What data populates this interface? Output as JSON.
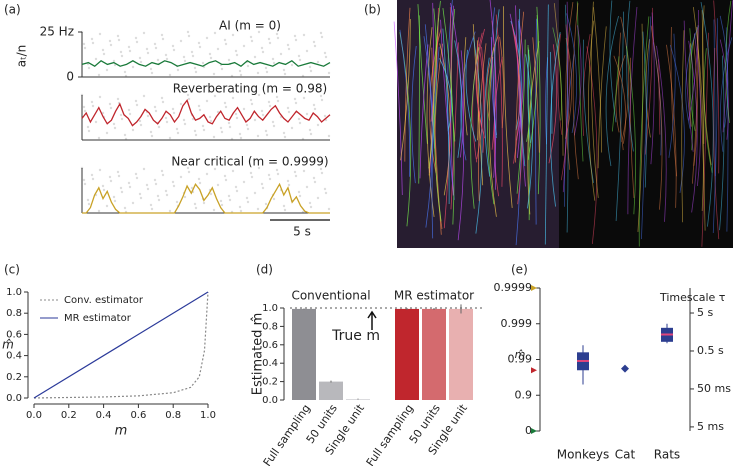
{
  "panel_labels": [
    "(a)",
    "(b)",
    "(c)",
    "(d)",
    "(e)"
  ],
  "chart_data": [
    {
      "type": "traces",
      "ylabel": "aₜ/n",
      "ylim": [
        0,
        25
      ],
      "yticks": [
        {
          "value": 25,
          "label": "25 Hz"
        },
        0
      ],
      "scale_bar": "5 s",
      "panels": [
        {
          "name": "AI (m = 0)",
          "color": "#1a7a3a",
          "values": [
            7,
            8,
            6,
            9,
            7,
            8,
            6,
            7,
            9,
            7,
            6,
            8,
            7,
            9,
            8,
            6,
            7,
            8,
            7,
            6,
            8,
            9,
            7,
            7,
            8,
            6,
            9,
            7,
            8,
            7,
            6,
            8,
            7,
            9,
            6,
            7,
            8,
            7,
            6,
            8
          ]
        },
        {
          "name": "Reverberating (m = 0.98)",
          "color": "#c0262d",
          "values": [
            12,
            15,
            10,
            14,
            18,
            13,
            9,
            11,
            16,
            20,
            14,
            12,
            8,
            10,
            13,
            17,
            15,
            11,
            9,
            12,
            16,
            14,
            10,
            13,
            19,
            22,
            15,
            11,
            12,
            14,
            10,
            9,
            13,
            16,
            12,
            11,
            15,
            18,
            14,
            10,
            12,
            16,
            13,
            11,
            14,
            17,
            19,
            15,
            12,
            10,
            13,
            16,
            14,
            12,
            11,
            15,
            13,
            10,
            12,
            14
          ]
        },
        {
          "name": "Near critical (m = 0.9999)",
          "color": "#c9a227",
          "values": [
            0,
            0,
            3,
            10,
            14,
            8,
            12,
            6,
            2,
            0,
            0,
            0,
            0,
            0,
            0,
            0,
            0,
            0,
            0,
            0,
            0,
            0,
            0,
            4,
            9,
            15,
            11,
            16,
            13,
            7,
            10,
            14,
            8,
            3,
            0,
            0,
            0,
            0,
            0,
            0,
            0,
            0,
            0,
            0,
            3,
            8,
            12,
            16,
            10,
            14,
            6,
            9,
            4,
            1,
            0,
            0,
            0,
            0,
            0,
            0
          ]
        }
      ]
    },
    {
      "type": "line",
      "xlabel": "m",
      "ylabel": "m̂",
      "xlim": [
        0,
        1
      ],
      "ylim": [
        0,
        1
      ],
      "xticks": [
        {
          "value": 0,
          "label": "0.0"
        },
        0.2,
        0.4,
        0.6,
        0.8,
        {
          "value": 1,
          "label": "1.0"
        }
      ],
      "yticks": [
        {
          "value": 0,
          "label": "0.0"
        },
        0.2,
        0.4,
        0.6,
        0.8,
        {
          "value": 1,
          "label": "1.0"
        }
      ],
      "legend": "upper-left",
      "series": [
        {
          "name": "Conv. estimator",
          "color": "#888888",
          "style": "dotted",
          "x": [
            0,
            0.2,
            0.4,
            0.6,
            0.8,
            0.9,
            0.95,
            0.98,
            1
          ],
          "values": [
            0,
            0.005,
            0.01,
            0.02,
            0.05,
            0.1,
            0.2,
            0.45,
            1
          ]
        },
        {
          "name": "MR estimator",
          "color": "#2b3a9a",
          "style": "solid",
          "x": [
            0,
            1
          ],
          "values": [
            0,
            1
          ]
        }
      ]
    },
    {
      "type": "bar",
      "ylabel": "Estimated m̂",
      "ylim": [
        0,
        1
      ],
      "yticks": [
        {
          "value": 0,
          "label": "0.0"
        },
        0.2,
        0.4,
        0.6,
        0.8,
        {
          "value": 1,
          "label": "1.0"
        }
      ],
      "categories": [
        "Full sampling",
        "50 units",
        "Single unit",
        "Full sampling",
        "50 units",
        "Single unit"
      ],
      "values": [
        0.99,
        0.2,
        0.01,
        0.99,
        0.99,
        0.99
      ],
      "errors": [
        0.005,
        0.01,
        0.005,
        0.01,
        0.01,
        0.05
      ],
      "colors": [
        "#8e8e93",
        "#b8b8bc",
        "#d8d8dc",
        "#c0262d",
        "#d46a6e",
        "#e8b0b0"
      ],
      "groups": [
        {
          "label": "Conventional",
          "color": "#999999"
        },
        {
          "label": "MR estimator",
          "color": "#c0262d"
        }
      ],
      "reference": {
        "value": 1,
        "label": "True m"
      }
    },
    {
      "type": "box",
      "ylabel": "m̂",
      "y2label": "Timescale τ",
      "yscale": "log-complement",
      "y2scale": "log",
      "ylim": [
        0,
        0.9999
      ],
      "yticks": [
        0,
        0.9,
        0.99,
        0.999,
        0.9999
      ],
      "y2lim": [
        0.0039,
        22.8
      ],
      "y2ticks": [
        {
          "value": 0.005,
          "label": "5 ms"
        },
        {
          "value": 0.05,
          "label": "50 ms"
        },
        {
          "value": 0.5,
          "label": "0.5 s"
        },
        {
          "value": 5,
          "label": "5 s"
        }
      ],
      "categories": [
        "Monkeys",
        "Cat",
        "Rats"
      ],
      "boxes": [
        {
          "min": 0.95,
          "q1": 0.98,
          "median": 0.989,
          "q3": 0.9937,
          "max": 0.996
        },
        {
          "median": 0.982
        },
        {
          "min": 0.9965,
          "q1": 0.9968,
          "median": 0.998,
          "q3": 0.9987,
          "max": 0.999
        }
      ],
      "box_color": "#2c3e90",
      "median_color": "#e0457b",
      "markers": [
        {
          "value": 0,
          "color": "#1a7a3a"
        },
        {
          "value": 0.98,
          "color": "#c0262d"
        },
        {
          "value": 0.9999,
          "color": "#c9a227"
        }
      ]
    }
  ]
}
